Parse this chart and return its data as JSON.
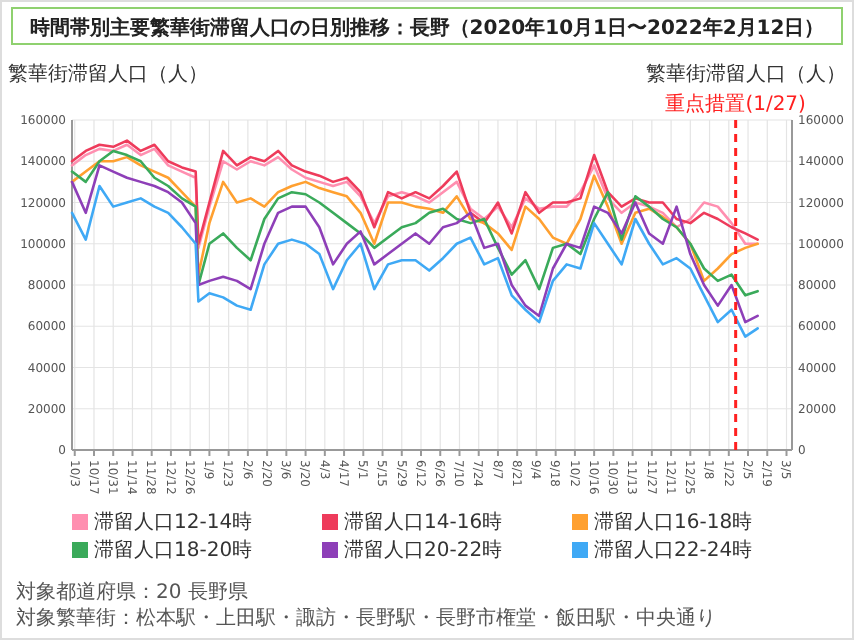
{
  "chart_data": {
    "type": "line",
    "title": "時間帯別主要繁華街滞留人口の日別推移：長野（2020年10月1日〜2022年2月12日）",
    "ylabel": "繁華街滞留人口（人）",
    "y2label": "繁華街滞留人口（人）",
    "x": [
      "2020-10-01",
      "2020-10-11",
      "2020-10-21",
      "2020-10-31",
      "2020-11-10",
      "2020-11-20",
      "2020-11-30",
      "2020-12-10",
      "2020-12-20",
      "2020-12-30",
      "2021-01-01",
      "2021-01-09",
      "2021-01-19",
      "2021-01-29",
      "2021-02-08",
      "2021-02-18",
      "2021-02-28",
      "2021-03-10",
      "2021-03-20",
      "2021-03-30",
      "2021-04-09",
      "2021-04-19",
      "2021-04-29",
      "2021-05-09",
      "2021-05-19",
      "2021-05-29",
      "2021-06-08",
      "2021-06-18",
      "2021-06-28",
      "2021-07-08",
      "2021-07-18",
      "2021-07-28",
      "2021-08-07",
      "2021-08-17",
      "2021-08-27",
      "2021-09-06",
      "2021-09-16",
      "2021-09-26",
      "2021-10-06",
      "2021-10-16",
      "2021-10-26",
      "2021-11-05",
      "2021-11-15",
      "2021-11-25",
      "2021-12-05",
      "2021-12-15",
      "2021-12-25",
      "2022-01-04",
      "2022-01-14",
      "2022-01-24",
      "2022-02-03",
      "2022-02-12"
    ],
    "series": [
      {
        "name": "滞留人口12-14時",
        "color": "#ff8fb0",
        "values": [
          138000,
          143000,
          146000,
          145000,
          148000,
          143000,
          146000,
          138000,
          135000,
          132000,
          98000,
          118000,
          140000,
          136000,
          140000,
          138000,
          142000,
          136000,
          132000,
          130000,
          128000,
          130000,
          123000,
          110000,
          123000,
          125000,
          123000,
          120000,
          125000,
          130000,
          117000,
          112000,
          118000,
          108000,
          122000,
          117000,
          118000,
          118000,
          125000,
          138000,
          122000,
          115000,
          120000,
          118000,
          115000,
          108000,
          112000,
          120000,
          118000,
          110000,
          100000,
          100000
        ]
      },
      {
        "name": "滞留人口14-16時",
        "color": "#ee3b5b",
        "values": [
          140000,
          145000,
          148000,
          147000,
          150000,
          145000,
          148000,
          140000,
          137000,
          135000,
          100000,
          120000,
          145000,
          138000,
          142000,
          140000,
          145000,
          138000,
          135000,
          133000,
          130000,
          132000,
          125000,
          108000,
          125000,
          122000,
          125000,
          122000,
          128000,
          135000,
          115000,
          110000,
          120000,
          105000,
          125000,
          115000,
          120000,
          120000,
          122000,
          143000,
          125000,
          118000,
          122000,
          120000,
          120000,
          112000,
          110000,
          115000,
          112000,
          108000,
          105000,
          102000
        ]
      },
      {
        "name": "滞留人口16-18時",
        "color": "#ffa030",
        "values": [
          130000,
          135000,
          140000,
          140000,
          142000,
          138000,
          135000,
          132000,
          125000,
          118000,
          85000,
          110000,
          130000,
          120000,
          122000,
          118000,
          125000,
          128000,
          130000,
          127000,
          125000,
          123000,
          115000,
          100000,
          120000,
          120000,
          118000,
          117000,
          115000,
          123000,
          112000,
          110000,
          105000,
          97000,
          118000,
          112000,
          103000,
          100000,
          112000,
          133000,
          118000,
          100000,
          115000,
          117000,
          113000,
          108000,
          100000,
          82000,
          88000,
          95000,
          98000,
          100000
        ]
      },
      {
        "name": "滞留人口18-20時",
        "color": "#3aaa5a",
        "values": [
          135000,
          130000,
          140000,
          145000,
          143000,
          140000,
          132000,
          128000,
          122000,
          118000,
          80000,
          100000,
          105000,
          98000,
          92000,
          112000,
          122000,
          125000,
          124000,
          120000,
          115000,
          110000,
          105000,
          98000,
          103000,
          108000,
          110000,
          115000,
          117000,
          112000,
          110000,
          112000,
          98000,
          85000,
          92000,
          78000,
          98000,
          100000,
          95000,
          112000,
          125000,
          102000,
          123000,
          118000,
          112000,
          108000,
          100000,
          88000,
          82000,
          85000,
          75000,
          77000
        ]
      },
      {
        "name": "滞留人口20-22時",
        "color": "#8e3fb8",
        "values": [
          130000,
          115000,
          138000,
          135000,
          132000,
          130000,
          128000,
          125000,
          120000,
          110000,
          80000,
          82000,
          84000,
          82000,
          78000,
          100000,
          115000,
          118000,
          118000,
          108000,
          90000,
          100000,
          106000,
          90000,
          95000,
          100000,
          105000,
          100000,
          108000,
          110000,
          115000,
          98000,
          100000,
          80000,
          70000,
          65000,
          88000,
          100000,
          98000,
          118000,
          115000,
          105000,
          120000,
          105000,
          100000,
          118000,
          95000,
          80000,
          70000,
          80000,
          62000,
          65000
        ]
      },
      {
        "name": "滞留人口22-24時",
        "color": "#3fa9f5",
        "values": [
          115000,
          102000,
          128000,
          118000,
          120000,
          122000,
          118000,
          115000,
          108000,
          100000,
          72000,
          76000,
          74000,
          70000,
          68000,
          90000,
          100000,
          102000,
          100000,
          95000,
          78000,
          92000,
          100000,
          78000,
          90000,
          92000,
          92000,
          87000,
          93000,
          100000,
          103000,
          90000,
          93000,
          75000,
          68000,
          62000,
          82000,
          90000,
          88000,
          110000,
          100000,
          90000,
          112000,
          100000,
          90000,
          93000,
          88000,
          75000,
          62000,
          68000,
          55000,
          59000
        ]
      }
    ],
    "xlim": [
      "2020-10-01",
      "2022-03-09"
    ],
    "xticks": [
      {
        "value": "2020-10-03",
        "label": "10/3"
      },
      {
        "value": "2020-10-17",
        "label": "10/17"
      },
      {
        "value": "2020-10-31",
        "label": "10/31"
      },
      {
        "value": "2020-11-14",
        "label": "11/14"
      },
      {
        "value": "2020-11-28",
        "label": "11/28"
      },
      {
        "value": "2020-12-12",
        "label": "12/12"
      },
      {
        "value": "2020-12-26",
        "label": "12/26"
      },
      {
        "value": "2021-01-09",
        "label": "1/9"
      },
      {
        "value": "2021-01-23",
        "label": "1/23"
      },
      {
        "value": "2021-02-06",
        "label": "2/6"
      },
      {
        "value": "2021-02-20",
        "label": "2/20"
      },
      {
        "value": "2021-03-06",
        "label": "3/6"
      },
      {
        "value": "2021-03-20",
        "label": "3/20"
      },
      {
        "value": "2021-04-03",
        "label": "4/3"
      },
      {
        "value": "2021-04-17",
        "label": "4/17"
      },
      {
        "value": "2021-05-01",
        "label": "5/1"
      },
      {
        "value": "2021-05-15",
        "label": "5/15"
      },
      {
        "value": "2021-05-29",
        "label": "5/29"
      },
      {
        "value": "2021-06-12",
        "label": "6/12"
      },
      {
        "value": "2021-06-26",
        "label": "6/26"
      },
      {
        "value": "2021-07-10",
        "label": "7/10"
      },
      {
        "value": "2021-07-24",
        "label": "7/24"
      },
      {
        "value": "2021-08-07",
        "label": "8/7"
      },
      {
        "value": "2021-08-21",
        "label": "8/21"
      },
      {
        "value": "2021-09-04",
        "label": "9/4"
      },
      {
        "value": "2021-09-18",
        "label": "9/18"
      },
      {
        "value": "2021-10-02",
        "label": "10/2"
      },
      {
        "value": "2021-10-16",
        "label": "10/16"
      },
      {
        "value": "2021-10-30",
        "label": "10/30"
      },
      {
        "value": "2021-11-13",
        "label": "11/13"
      },
      {
        "value": "2021-11-27",
        "label": "11/27"
      },
      {
        "value": "2021-12-11",
        "label": "12/11"
      },
      {
        "value": "2021-12-25",
        "label": "12/25"
      },
      {
        "value": "2022-01-08",
        "label": "1/8"
      },
      {
        "value": "2022-01-22",
        "label": "1/22"
      },
      {
        "value": "2022-02-05",
        "label": "2/5"
      },
      {
        "value": "2022-02-19",
        "label": "2/19"
      },
      {
        "value": "2022-03-05",
        "label": "3/5"
      }
    ],
    "ylim": [
      0,
      160000
    ],
    "yticks": [
      0,
      20000,
      40000,
      60000,
      80000,
      100000,
      120000,
      140000,
      160000
    ],
    "y2lim": [
      0,
      160000
    ],
    "y2ticks": [
      0,
      20000,
      40000,
      60000,
      80000,
      100000,
      120000,
      140000,
      160000
    ],
    "ref_lines": [
      {
        "axis": "x",
        "value": "2022-01-27",
        "label": "重点措置(1/27)",
        "color": "#ff2020",
        "line_style": "dashed"
      }
    ],
    "annotations": [
      "対象都道府県：20 長野県",
      "対象繁華街：松本駅・上田駅・諏訪・長野駅・長野市権堂・飯田駅・中央通り"
    ],
    "grid": true,
    "legend": "bottom",
    "marker": "none",
    "line_style": "solid"
  }
}
